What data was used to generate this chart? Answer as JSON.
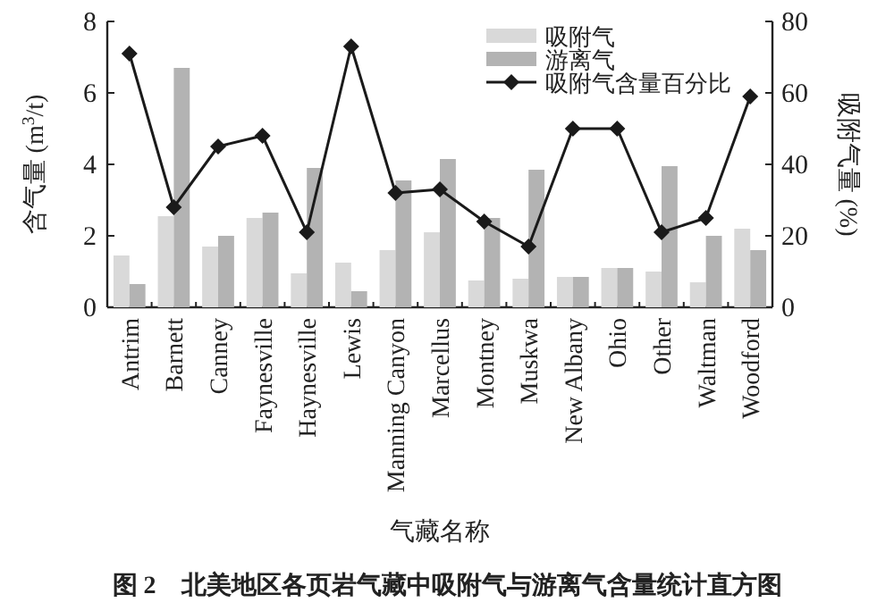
{
  "chart_data": {
    "type": "bar",
    "title": "图 2　北美地区各页岩气藏中吸附气与游离气含量统计直方图",
    "xlabel": "气藏名称",
    "ylabel": "含气量 (m$^{3}$/t)",
    "y2label": "吸附气量 (%)",
    "categories": [
      "Antrim",
      "Barnett",
      "Canney",
      "Faynesville",
      "Haynesville",
      "Lewis",
      "Manning Canyon",
      "Marcellus",
      "Montney",
      "Muskwa",
      "New Albany",
      "Ohio",
      "Other",
      "Waltman",
      "Woodford"
    ],
    "series": [
      {
        "name": "吸附气",
        "color": "#d9d9d9",
        "values": [
          1.45,
          2.55,
          1.7,
          2.5,
          0.95,
          1.25,
          1.6,
          2.1,
          0.75,
          0.8,
          0.85,
          1.1,
          1.0,
          0.7,
          2.2
        ]
      },
      {
        "name": "游离气",
        "color": "#b3b3b3",
        "values": [
          0.65,
          6.7,
          2.0,
          2.65,
          3.9,
          0.45,
          3.55,
          4.15,
          2.5,
          3.85,
          0.85,
          1.1,
          3.95,
          2.0,
          1.6
        ]
      },
      {
        "name": "吸附气含量百分比",
        "type": "line",
        "axis": "y2",
        "color": "#1a1a1a",
        "values": [
          71,
          28,
          45,
          48,
          21,
          73,
          32,
          33,
          24,
          17,
          50,
          50,
          21,
          25,
          59
        ]
      }
    ],
    "ylim": [
      0,
      8
    ],
    "yticks": [
      0,
      2,
      4,
      6,
      8
    ],
    "y2lim": [
      0,
      80
    ],
    "y2ticks": [
      0,
      20,
      40,
      60,
      80
    ],
    "legend": "top right",
    "marker": "diamond"
  }
}
